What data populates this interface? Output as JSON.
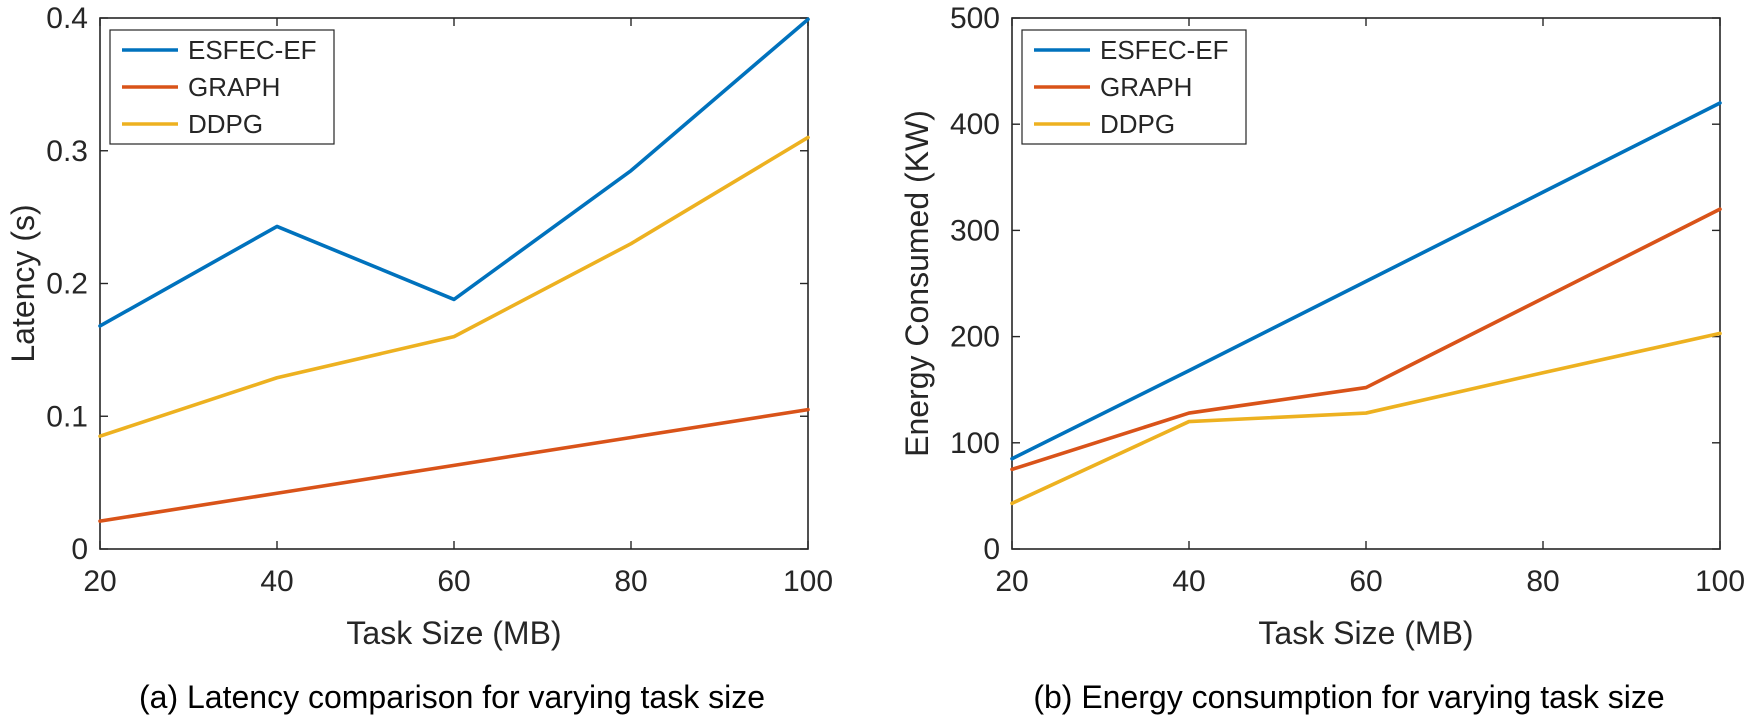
{
  "chart_data": [
    {
      "type": "line",
      "caption": "(a) Latency comparison for varying task size",
      "xlabel": "Task Size (MB)",
      "ylabel": "Latency (s)",
      "x": [
        20,
        40,
        60,
        80,
        100
      ],
      "xlim": [
        20,
        100
      ],
      "ylim": [
        0,
        0.4
      ],
      "xticks": [
        "20",
        "40",
        "60",
        "80",
        "100"
      ],
      "yticks": [
        "0",
        "0.1",
        "0.2",
        "0.3",
        "0.4"
      ],
      "xtick_values": [
        20,
        40,
        60,
        80,
        100
      ],
      "ytick_values": [
        0,
        0.1,
        0.2,
        0.3,
        0.4
      ],
      "grid": false,
      "legend_position": "top-left",
      "series": [
        {
          "name": "ESFEC-EF",
          "color": "#0072BD",
          "values": [
            0.168,
            0.243,
            0.188,
            0.285,
            0.399
          ]
        },
        {
          "name": "GRAPH",
          "color": "#D95319",
          "values": [
            0.021,
            0.042,
            0.063,
            0.084,
            0.105
          ]
        },
        {
          "name": "DDPG",
          "color": "#EDB120",
          "values": [
            0.085,
            0.129,
            0.16,
            0.23,
            0.31
          ]
        }
      ]
    },
    {
      "type": "line",
      "caption": "(b) Energy consumption for varying task size",
      "xlabel": "Task Size (MB)",
      "ylabel": "Energy Consumed (KW)",
      "x": [
        20,
        40,
        60,
        80,
        100
      ],
      "xlim": [
        20,
        100
      ],
      "ylim": [
        0,
        500
      ],
      "xticks": [
        "20",
        "40",
        "60",
        "80",
        "100"
      ],
      "yticks": [
        "0",
        "100",
        "200",
        "300",
        "400",
        "500"
      ],
      "xtick_values": [
        20,
        40,
        60,
        80,
        100
      ],
      "ytick_values": [
        0,
        100,
        200,
        300,
        400,
        500
      ],
      "grid": false,
      "legend_position": "top-left",
      "series": [
        {
          "name": "ESFEC-EF",
          "color": "#0072BD",
          "values": [
            85,
            168,
            252,
            336,
            420
          ]
        },
        {
          "name": "GRAPH",
          "color": "#D95319",
          "values": [
            75,
            128,
            152,
            236,
            320
          ]
        },
        {
          "name": "DDPG",
          "color": "#EDB120",
          "values": [
            43,
            120,
            128,
            166,
            203
          ]
        }
      ]
    }
  ]
}
